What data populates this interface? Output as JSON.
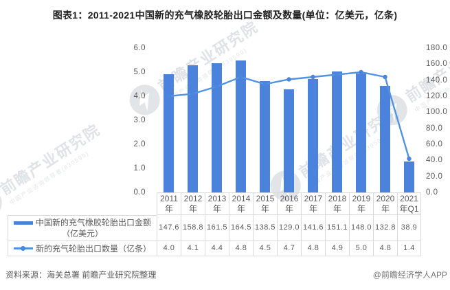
{
  "title": "图表1：2011-2021中国新的充气橡胶轮胎出口金额及数量(单位：亿美元，亿条)",
  "colors": {
    "bar": "#4a82dc",
    "line": "#5292e2",
    "marker": "#4a86dd",
    "grid": "#d9d9d9",
    "text": "#595959"
  },
  "chart_data": {
    "type": "bar+line",
    "categories": [
      "2011年",
      "2012年",
      "2013年",
      "2014年",
      "2015年",
      "2016年",
      "2017年",
      "2018年",
      "2019年",
      "2020年",
      "2021年Q1"
    ],
    "series": [
      {
        "name": "中国新的充气橡胶轮胎出口金额（亿美元）",
        "type": "bar",
        "axis": "right",
        "values": [
          147.6,
          158.8,
          161.5,
          164.5,
          138.5,
          129.0,
          141.6,
          151.1,
          148.0,
          132.8,
          38.9
        ]
      },
      {
        "name": "新的充气轮胎出口数量（亿条）",
        "type": "line",
        "axis": "left",
        "values": [
          4.0,
          4.1,
          4.4,
          4.8,
          4.5,
          4.7,
          4.8,
          4.9,
          5.0,
          4.8,
          1.4
        ]
      }
    ],
    "left_axis": {
      "min": 0,
      "max": 6,
      "step": 1,
      "ticks": [
        "0.0",
        "1.0",
        "2.0",
        "3.0",
        "4.0",
        "5.0",
        "6.0"
      ]
    },
    "right_axis": {
      "min": 0,
      "max": 180,
      "step": 20,
      "ticks": [
        "0.0",
        "20.0",
        "40.0",
        "60.0",
        "80.0",
        "100.0",
        "120.0",
        "140.0",
        "160.0",
        "180.0"
      ]
    },
    "grid": false,
    "legend_position": "table-left"
  },
  "table": {
    "years_line1": [
      "2011",
      "2012",
      "2013",
      "2014",
      "2015",
      "2016",
      "2017",
      "2018",
      "2019",
      "2020",
      "2021"
    ],
    "years_line2": [
      "年",
      "年",
      "年",
      "年",
      "年",
      "年",
      "年",
      "年",
      "年",
      "年",
      "年Q1"
    ],
    "row1_label_line1": "中国新的充气橡胶轮胎出口金额",
    "row1_label_line2": "（亿美元）",
    "row1_values": [
      "147.6",
      "158.8",
      "161.5",
      "164.5",
      "138.5",
      "129.0",
      "141.6",
      "151.1",
      "148.0",
      "132.8",
      "38.9"
    ],
    "row2_label": "新的充气轮胎出口数量（亿条）",
    "row2_values": [
      "4.0",
      "4.1",
      "4.4",
      "4.8",
      "4.5",
      "4.7",
      "4.8",
      "4.9",
      "5.0",
      "4.8",
      "1.4"
    ]
  },
  "footer": {
    "source": "资料来源：海关总署 前瞻产业研究院整理",
    "credit": "@前瞻经济学人APP"
  },
  "watermark": {
    "text": "前瞻产业研究院",
    "subtext": "中国产业咨询领导者(839599)"
  }
}
